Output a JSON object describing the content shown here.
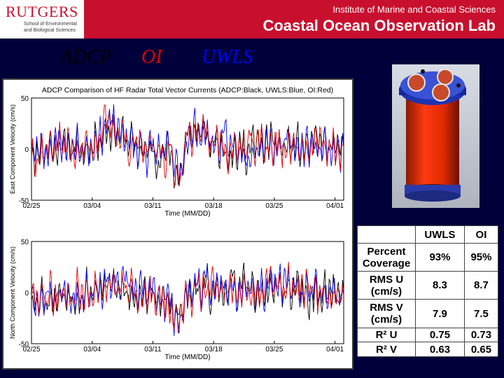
{
  "header": {
    "logo_word": "RUTGERS",
    "logo_line1": "School of Environmental",
    "logo_line2": "and Biological Sciences",
    "institute": "Institute of Marine and Coastal Sciences",
    "lab": "Coastal Ocean Observation Lab"
  },
  "legend": {
    "adcp": "ADCP",
    "oi": "OI",
    "uwls": "UWLS"
  },
  "colors": {
    "adcp": "#000000",
    "oi": "#e00000",
    "uwls": "#0000ff",
    "header_red": "#c8102e",
    "background": "#00003a"
  },
  "chart_data": [
    {
      "type": "line",
      "title": "ADCP Comparison of HF Radar Total Vector Currents (ADCP:Black, UWLS:Blue, OI:Red)",
      "xlabel": "Time (MM/DD)",
      "ylabel": "East Component Velocity (cm/s)",
      "xticks": [
        "02/25",
        "03/04",
        "03/11",
        "03/18",
        "03/25",
        "04/01"
      ],
      "yticks": [
        50,
        0,
        -50
      ],
      "ylim": [
        -50,
        50
      ],
      "xlim_days": [
        0,
        36
      ],
      "series": [
        {
          "name": "ADCP",
          "color": "#000000",
          "seed": 11,
          "trend": [
            [
              0,
              -5
            ],
            [
              3,
              5
            ],
            [
              6,
              -2
            ],
            [
              9,
              22
            ],
            [
              12,
              0
            ],
            [
              14,
              -5
            ],
            [
              16,
              -4
            ],
            [
              17,
              -30
            ],
            [
              18,
              10
            ],
            [
              19,
              18
            ],
            [
              21,
              6
            ],
            [
              24,
              -2
            ],
            [
              27,
              5
            ],
            [
              30,
              0
            ],
            [
              33,
              3
            ],
            [
              36,
              -5
            ]
          ]
        },
        {
          "name": "UWLS",
          "color": "#0000ff",
          "seed": 23,
          "trend": [
            [
              0,
              -3
            ],
            [
              3,
              6
            ],
            [
              6,
              0
            ],
            [
              9,
              25
            ],
            [
              12,
              2
            ],
            [
              14,
              -3
            ],
            [
              16,
              -3
            ],
            [
              17,
              -28
            ],
            [
              18,
              12
            ],
            [
              19,
              20
            ],
            [
              21,
              8
            ],
            [
              24,
              0
            ],
            [
              27,
              6
            ],
            [
              30,
              2
            ],
            [
              33,
              4
            ],
            [
              36,
              -3
            ]
          ]
        },
        {
          "name": "OI",
          "color": "#e00000",
          "seed": 37,
          "trend": [
            [
              0,
              -4
            ],
            [
              3,
              6
            ],
            [
              6,
              -1
            ],
            [
              9,
              24
            ],
            [
              12,
              1
            ],
            [
              14,
              -4
            ],
            [
              16,
              -3
            ],
            [
              17,
              -27
            ],
            [
              18,
              11
            ],
            [
              19,
              19
            ],
            [
              21,
              7
            ],
            [
              24,
              -1
            ],
            [
              27,
              5
            ],
            [
              30,
              1
            ],
            [
              33,
              4
            ],
            [
              36,
              -4
            ]
          ]
        }
      ]
    },
    {
      "type": "line",
      "title": "",
      "xlabel": "Time (MM/DD)",
      "ylabel": "North Component Velocity (cm/s)",
      "xticks": [
        "02/25",
        "03/04",
        "03/11",
        "03/18",
        "03/25",
        "04/01"
      ],
      "yticks": [
        50,
        0,
        -50
      ],
      "ylim": [
        -50,
        50
      ],
      "xlim_days": [
        0,
        36
      ],
      "series": [
        {
          "name": "ADCP",
          "color": "#000000",
          "seed": 53,
          "trend": [
            [
              0,
              -5
            ],
            [
              3,
              -3
            ],
            [
              6,
              2
            ],
            [
              9,
              5
            ],
            [
              12,
              0
            ],
            [
              15,
              -5
            ],
            [
              17,
              -25
            ],
            [
              18,
              -5
            ],
            [
              20,
              2
            ],
            [
              23,
              5
            ],
            [
              26,
              0
            ],
            [
              29,
              5
            ],
            [
              32,
              -3
            ],
            [
              36,
              0
            ]
          ]
        },
        {
          "name": "UWLS",
          "color": "#0000ff",
          "seed": 67,
          "trend": [
            [
              0,
              -2
            ],
            [
              3,
              0
            ],
            [
              6,
              4
            ],
            [
              9,
              8
            ],
            [
              12,
              2
            ],
            [
              15,
              -3
            ],
            [
              17,
              -22
            ],
            [
              18,
              -3
            ],
            [
              20,
              4
            ],
            [
              23,
              7
            ],
            [
              26,
              2
            ],
            [
              29,
              7
            ],
            [
              32,
              0
            ],
            [
              36,
              2
            ]
          ]
        },
        {
          "name": "OI",
          "color": "#e00000",
          "seed": 79,
          "trend": [
            [
              0,
              -3
            ],
            [
              3,
              -1
            ],
            [
              6,
              3
            ],
            [
              9,
              7
            ],
            [
              12,
              1
            ],
            [
              15,
              -4
            ],
            [
              17,
              -23
            ],
            [
              18,
              -4
            ],
            [
              20,
              3
            ],
            [
              23,
              6
            ],
            [
              26,
              1
            ],
            [
              29,
              6
            ],
            [
              32,
              -1
            ],
            [
              36,
              1
            ]
          ]
        }
      ]
    }
  ],
  "stats": {
    "headers": [
      "",
      "UWLS",
      "OI"
    ],
    "rows": [
      {
        "label": "Percent Coverage",
        "uwls": "93%",
        "oi": "95%"
      },
      {
        "label": "RMS U (cm/s)",
        "uwls": "8.3",
        "oi": "8.7"
      },
      {
        "label": "RMS V (cm/s)",
        "uwls": "7.9",
        "oi": "7.5"
      },
      {
        "label": "R² U",
        "uwls": "0.75",
        "oi": "0.73"
      },
      {
        "label": "R² V",
        "uwls": "0.63",
        "oi": "0.65"
      }
    ]
  }
}
